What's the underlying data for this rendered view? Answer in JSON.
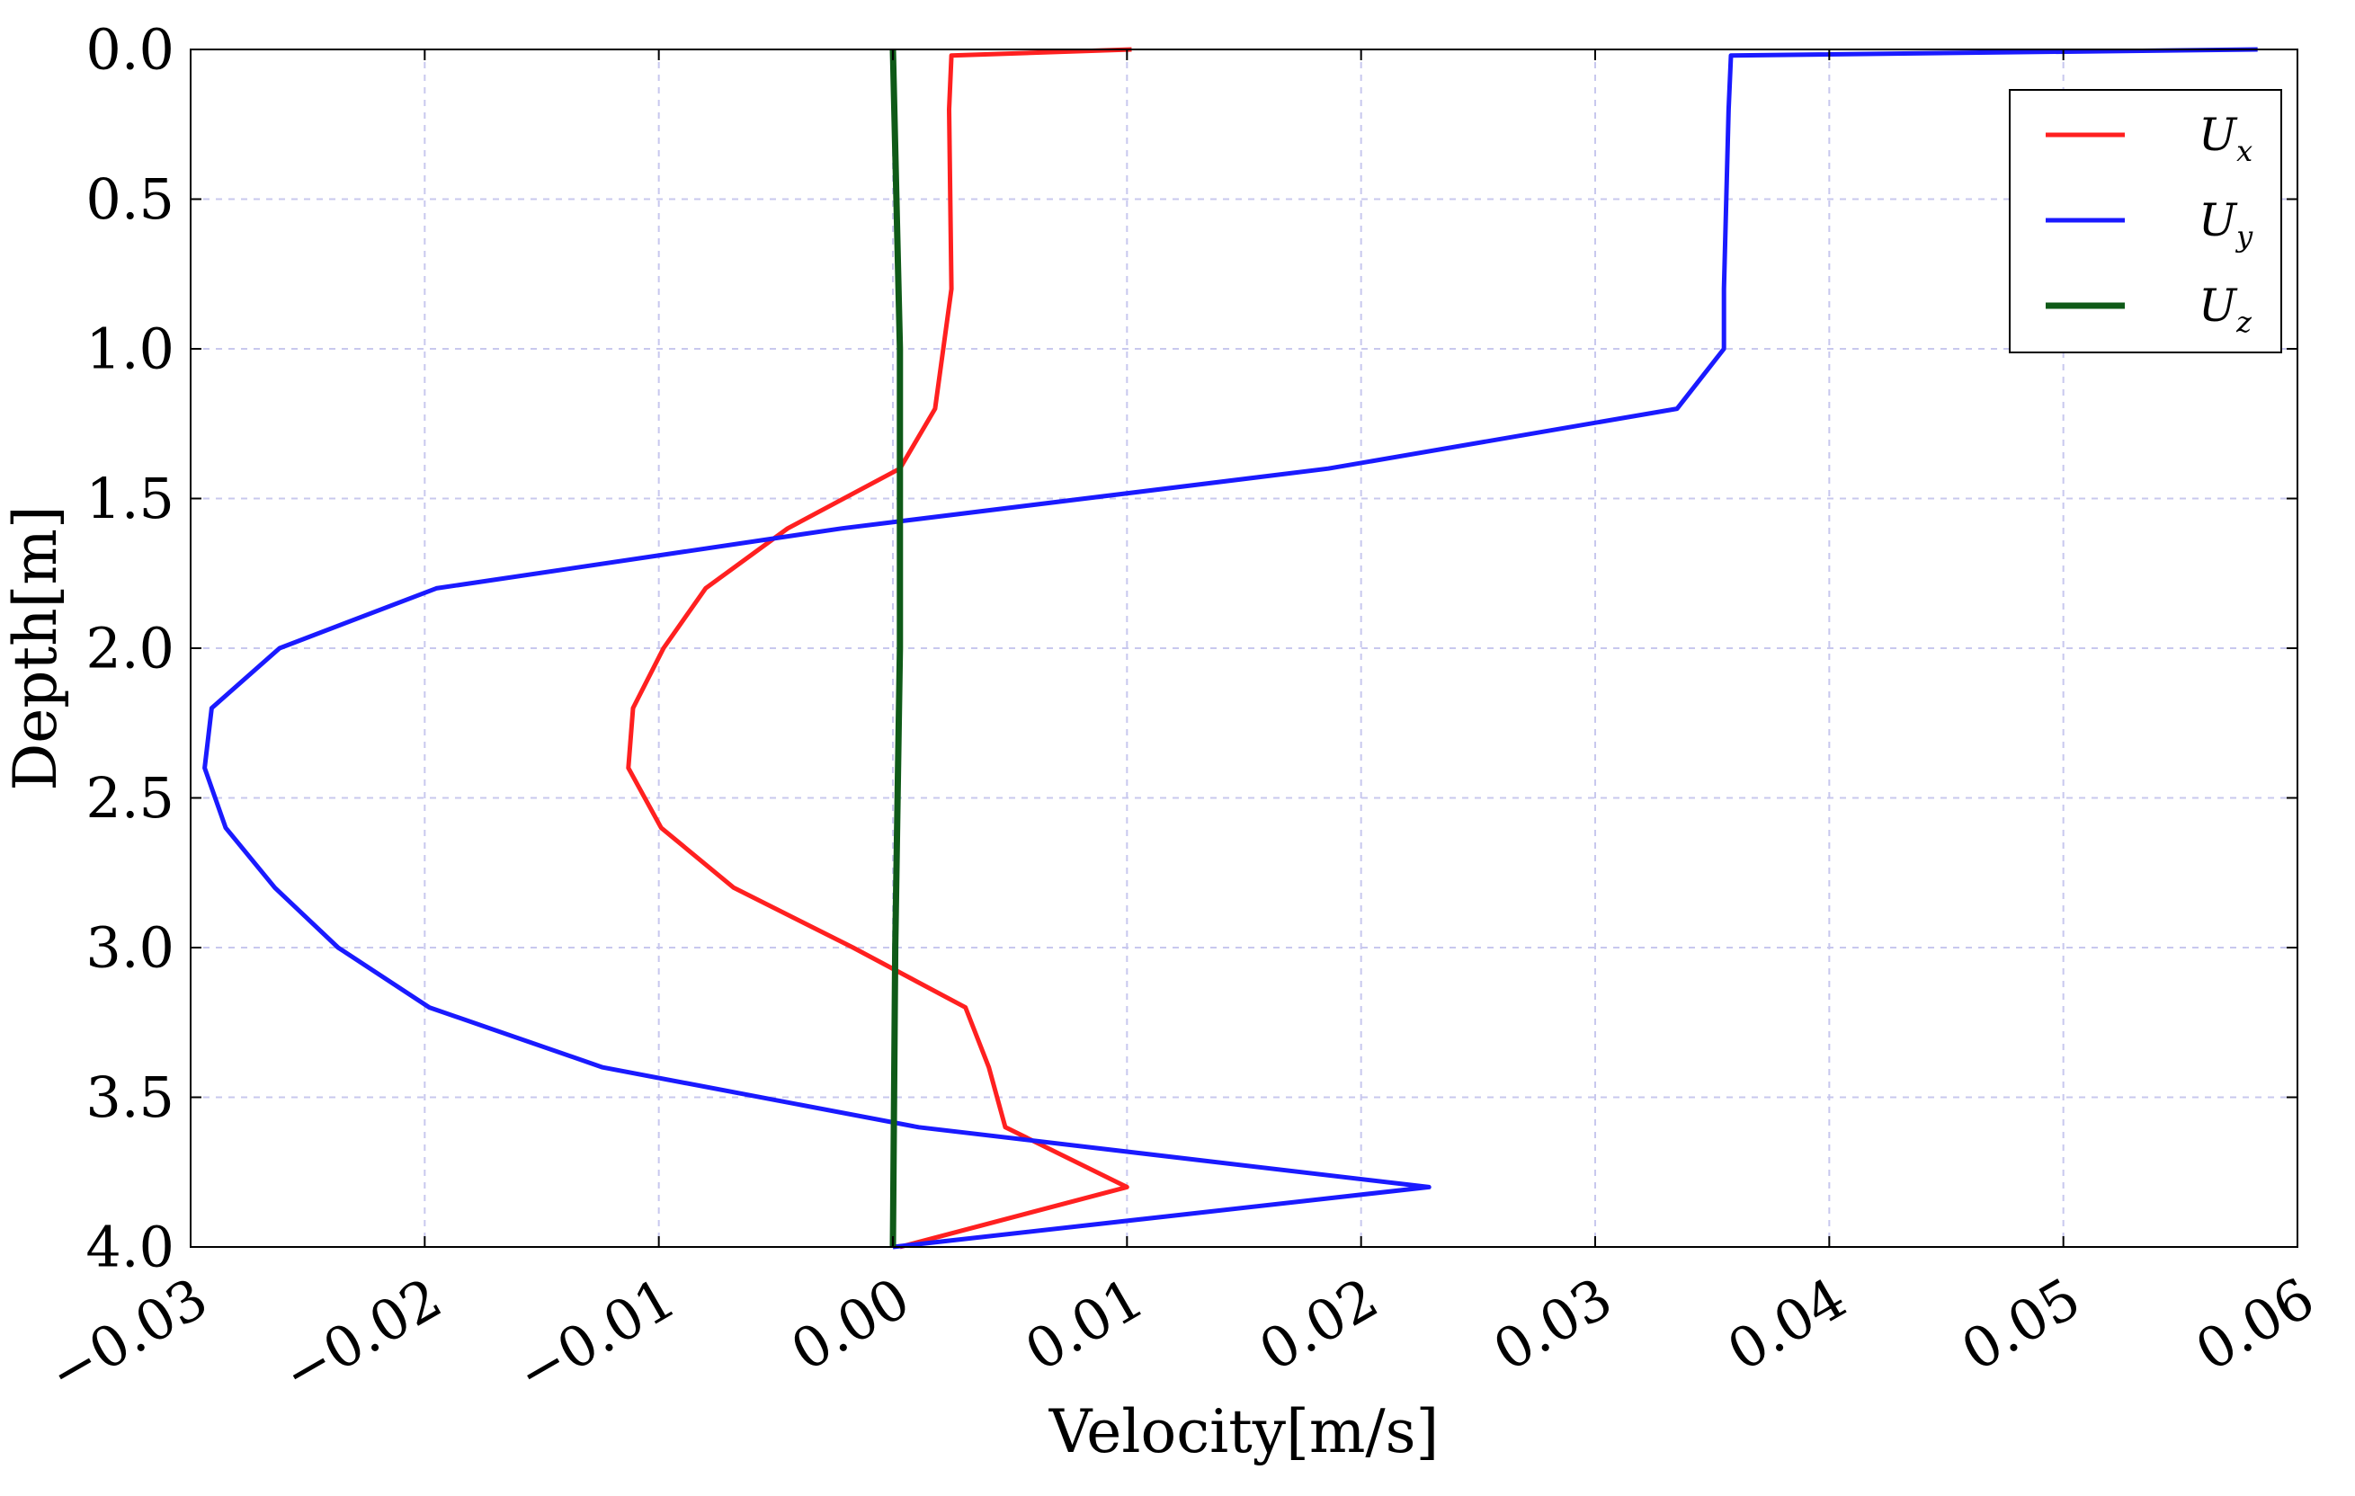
{
  "chart_data": {
    "type": "line",
    "xlabel": "Velocity[m/s]",
    "ylabel": "Depth[m]",
    "xlim": [
      -0.03,
      0.06
    ],
    "ylim": [
      4.0,
      0.0
    ],
    "y_inverted": true,
    "x_ticks": [
      "−0.03",
      "−0.02",
      "−0.01",
      "0.00",
      "0.01",
      "0.02",
      "0.03",
      "0.04",
      "0.05",
      "0.06"
    ],
    "x_tick_values": [
      -0.03,
      -0.02,
      -0.01,
      0.0,
      0.01,
      0.02,
      0.03,
      0.04,
      0.05,
      0.06
    ],
    "y_ticks": [
      "0.0",
      "0.5",
      "1.0",
      "1.5",
      "2.0",
      "2.5",
      "3.0",
      "3.5",
      "4.0"
    ],
    "y_tick_values": [
      0.0,
      0.5,
      1.0,
      1.5,
      2.0,
      2.5,
      3.0,
      3.5,
      4.0
    ],
    "grid": true,
    "legend_position": "top-right",
    "series": [
      {
        "name": "U_x",
        "label_main": "U",
        "label_sub": "x",
        "color": "#ff2020",
        "points": [
          [
            0.0102,
            0.0
          ],
          [
            0.0025,
            0.02
          ],
          [
            0.0024,
            0.2
          ],
          [
            0.0025,
            0.8
          ],
          [
            0.0018,
            1.2
          ],
          [
            0.0003,
            1.4
          ],
          [
            -0.0045,
            1.6
          ],
          [
            -0.008,
            1.8
          ],
          [
            -0.0098,
            2.0
          ],
          [
            -0.0111,
            2.2
          ],
          [
            -0.0113,
            2.4
          ],
          [
            -0.0099,
            2.6
          ],
          [
            -0.0068,
            2.8
          ],
          [
            -0.0017,
            3.0
          ],
          [
            0.0031,
            3.2
          ],
          [
            0.0041,
            3.4
          ],
          [
            0.0048,
            3.6
          ],
          [
            0.01,
            3.8
          ],
          [
            0.0003,
            4.0
          ]
        ]
      },
      {
        "name": "U_y",
        "label_main": "U",
        "label_sub": "y",
        "color": "#1a1aff",
        "points": [
          [
            0.0583,
            0.0
          ],
          [
            0.0358,
            0.02
          ],
          [
            0.0357,
            0.2
          ],
          [
            0.0355,
            0.8
          ],
          [
            0.0355,
            1.0
          ],
          [
            0.0335,
            1.2
          ],
          [
            0.0186,
            1.4
          ],
          [
            -0.0022,
            1.6
          ],
          [
            -0.0195,
            1.8
          ],
          [
            -0.0262,
            2.0
          ],
          [
            -0.0291,
            2.2
          ],
          [
            -0.0294,
            2.4
          ],
          [
            -0.0285,
            2.6
          ],
          [
            -0.0264,
            2.8
          ],
          [
            -0.0237,
            3.0
          ],
          [
            -0.0198,
            3.2
          ],
          [
            -0.0124,
            3.4
          ],
          [
            0.0011,
            3.6
          ],
          [
            0.0229,
            3.8
          ],
          [
            0.0,
            4.0
          ]
        ]
      },
      {
        "name": "U_z",
        "label_main": "U",
        "label_sub": "z",
        "color": "#0f5a18",
        "points": [
          [
            0.0,
            0.0
          ],
          [
            0.0003,
            1.0
          ],
          [
            0.0003,
            2.0
          ],
          [
            0.0001,
            3.0
          ],
          [
            0.0,
            4.0
          ]
        ]
      }
    ]
  }
}
